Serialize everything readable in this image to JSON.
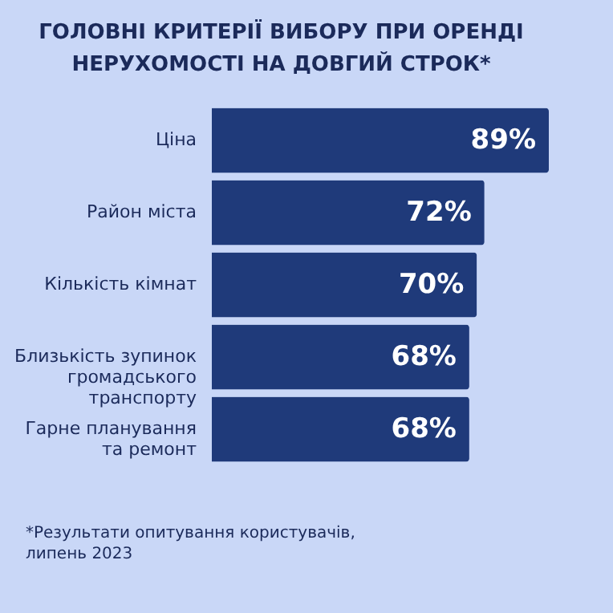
{
  "chart_data": {
    "type": "bar",
    "orientation": "horizontal",
    "title": "ГОЛОВНІ КРИТЕРІЇ ВИБОРУ ПРИ ОРЕНДІ НЕРУХОМОСТІ НА ДОВГИЙ СТРОК*",
    "categories": [
      "Ціна",
      "Район міста",
      "Кількість кімнат",
      "Близькість зупинок громадського транспорту",
      "Гарне планування та ремонт"
    ],
    "values": [
      89,
      72,
      70,
      68,
      68
    ],
    "value_labels": [
      "89%",
      "72%",
      "70%",
      "68%",
      "68%"
    ],
    "color": "#1f3a7a",
    "annotations": [
      "*Результати опитування користувачів, липень 2023"
    ]
  }
}
